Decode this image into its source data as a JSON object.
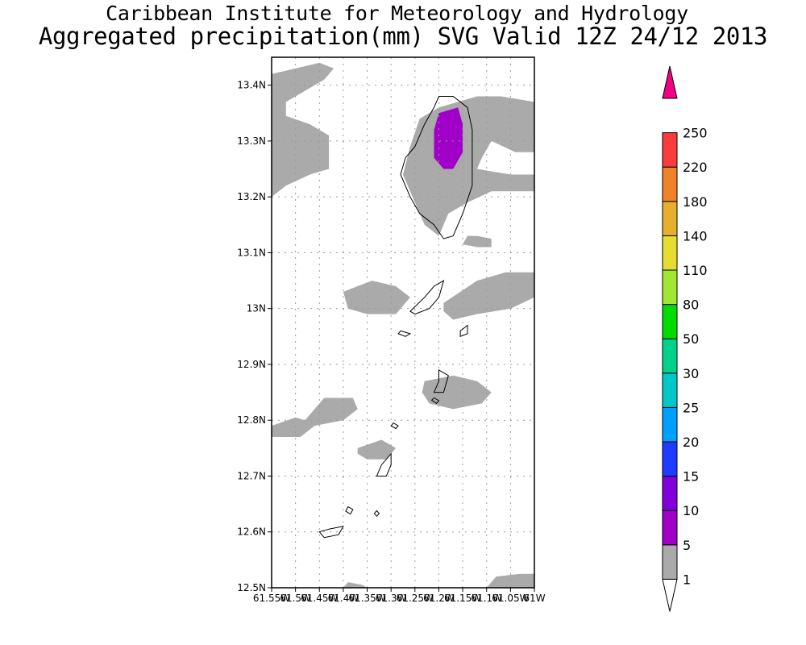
{
  "title": {
    "line1": "Caribbean Institute for Meteorology and Hydrology",
    "line2": "Aggregated precipitation(mm) SVG Valid 12Z 24/12 2013"
  },
  "map": {
    "lat_range": [
      12.5,
      13.45
    ],
    "lon_range": [
      -61.55,
      -61.0
    ],
    "lat_ticks": [
      {
        "value": 12.5,
        "label": "12.5N"
      },
      {
        "value": 12.6,
        "label": "12.6N"
      },
      {
        "value": 12.7,
        "label": "12.7N"
      },
      {
        "value": 12.8,
        "label": "12.8N"
      },
      {
        "value": 12.9,
        "label": "12.9N"
      },
      {
        "value": 13.0,
        "label": "13N"
      },
      {
        "value": 13.1,
        "label": "13.1N"
      },
      {
        "value": 13.2,
        "label": "13.2N"
      },
      {
        "value": 13.3,
        "label": "13.3N"
      },
      {
        "value": 13.4,
        "label": "13.4N"
      }
    ],
    "lon_ticks": [
      {
        "value": -61.55,
        "label": "61.55W"
      },
      {
        "value": -61.5,
        "label": "61.5W"
      },
      {
        "value": -61.45,
        "label": "61.45W"
      },
      {
        "value": -61.4,
        "label": "61.4W"
      },
      {
        "value": -61.35,
        "label": "61.35W"
      },
      {
        "value": -61.3,
        "label": "61.3W"
      },
      {
        "value": -61.25,
        "label": "61.25W"
      },
      {
        "value": -61.2,
        "label": "61.2W"
      },
      {
        "value": -61.15,
        "label": "61.15W"
      },
      {
        "value": -61.1,
        "label": "61.1W"
      },
      {
        "value": -61.05,
        "label": "61.05W"
      },
      {
        "value": -61.0,
        "label": "61W"
      }
    ],
    "grid": true,
    "precip_areas": [
      {
        "category": "1-5",
        "points": [
          [
            -61.55,
            13.42
          ],
          [
            -61.5,
            13.43
          ],
          [
            -61.45,
            13.44
          ],
          [
            -61.42,
            13.43
          ],
          [
            -61.44,
            13.41
          ],
          [
            -61.48,
            13.39
          ],
          [
            -61.52,
            13.37
          ],
          [
            -61.52,
            13.345
          ],
          [
            -61.47,
            13.33
          ],
          [
            -61.43,
            13.31
          ],
          [
            -61.43,
            13.25
          ],
          [
            -61.47,
            13.24
          ],
          [
            -61.52,
            13.22
          ],
          [
            -61.55,
            13.2
          ]
        ]
      },
      {
        "category": "1-5",
        "points": [
          [
            -61.2,
            13.36
          ],
          [
            -61.12,
            13.38
          ],
          [
            -61.07,
            13.38
          ],
          [
            -61.0,
            13.37
          ],
          [
            -61.0,
            13.28
          ],
          [
            -61.04,
            13.28
          ],
          [
            -61.09,
            13.3
          ],
          [
            -61.11,
            13.27
          ],
          [
            -61.12,
            13.25
          ],
          [
            -61.05,
            13.24
          ],
          [
            -61.0,
            13.24
          ],
          [
            -61.0,
            13.21
          ],
          [
            -61.09,
            13.21
          ],
          [
            -61.14,
            13.19
          ],
          [
            -61.18,
            13.17
          ],
          [
            -61.2,
            13.13
          ],
          [
            -61.23,
            13.15
          ],
          [
            -61.25,
            13.19
          ],
          [
            -61.275,
            13.24
          ],
          [
            -61.26,
            13.29
          ],
          [
            -61.24,
            13.34
          ]
        ]
      },
      {
        "category": "5-10",
        "points": [
          [
            -61.2,
            13.35
          ],
          [
            -61.16,
            13.36
          ],
          [
            -61.15,
            13.33
          ],
          [
            -61.15,
            13.28
          ],
          [
            -61.17,
            13.25
          ],
          [
            -61.19,
            13.25
          ],
          [
            -61.21,
            13.27
          ],
          [
            -61.21,
            13.32
          ]
        ]
      },
      {
        "category": "1-5",
        "points": [
          [
            -61.14,
            13.13
          ],
          [
            -61.12,
            13.13
          ],
          [
            -61.09,
            13.125
          ],
          [
            -61.09,
            13.11
          ],
          [
            -61.12,
            13.11
          ],
          [
            -61.15,
            13.115
          ]
        ]
      },
      {
        "category": "1-5",
        "points": [
          [
            -61.4,
            13.03
          ],
          [
            -61.34,
            13.05
          ],
          [
            -61.29,
            13.04
          ],
          [
            -61.26,
            13.02
          ],
          [
            -61.29,
            12.99
          ],
          [
            -61.35,
            12.99
          ],
          [
            -61.39,
            13.0
          ]
        ]
      },
      {
        "category": "1-5",
        "points": [
          [
            -61.19,
            13.01
          ],
          [
            -61.12,
            13.05
          ],
          [
            -61.06,
            13.065
          ],
          [
            -61.0,
            13.065
          ],
          [
            -61.0,
            13.02
          ],
          [
            -61.05,
            13.0
          ],
          [
            -61.12,
            12.99
          ],
          [
            -61.17,
            12.98
          ],
          [
            -61.19,
            12.995
          ]
        ]
      },
      {
        "category": "1-5",
        "points": [
          [
            -61.23,
            12.87
          ],
          [
            -61.17,
            12.88
          ],
          [
            -61.12,
            12.87
          ],
          [
            -61.09,
            12.85
          ],
          [
            -61.11,
            12.83
          ],
          [
            -61.17,
            12.82
          ],
          [
            -61.22,
            12.83
          ],
          [
            -61.235,
            12.85
          ]
        ]
      },
      {
        "category": "1-5",
        "points": [
          [
            -61.55,
            12.79
          ],
          [
            -61.5,
            12.805
          ],
          [
            -61.48,
            12.8
          ],
          [
            -61.44,
            12.84
          ],
          [
            -61.38,
            12.84
          ],
          [
            -61.37,
            12.82
          ],
          [
            -61.4,
            12.8
          ],
          [
            -61.46,
            12.79
          ],
          [
            -61.49,
            12.77
          ],
          [
            -61.55,
            12.77
          ]
        ]
      },
      {
        "category": "1-5",
        "points": [
          [
            -61.37,
            12.75
          ],
          [
            -61.32,
            12.765
          ],
          [
            -61.29,
            12.75
          ],
          [
            -61.31,
            12.73
          ],
          [
            -61.35,
            12.73
          ],
          [
            -61.37,
            12.74
          ]
        ]
      },
      {
        "category": "1-5",
        "points": [
          [
            -61.4,
            12.5
          ],
          [
            -61.39,
            12.51
          ],
          [
            -61.36,
            12.505
          ],
          [
            -61.35,
            12.5
          ]
        ]
      },
      {
        "category": "1-5",
        "points": [
          [
            -61.1,
            12.5
          ],
          [
            -61.08,
            12.52
          ],
          [
            -61.03,
            12.525
          ],
          [
            -61.0,
            12.525
          ],
          [
            -61.0,
            12.5
          ]
        ]
      }
    ],
    "islands": [
      {
        "name": "",
        "points": [
          [
            -61.2,
            13.38
          ],
          [
            -61.17,
            13.38
          ],
          [
            -61.14,
            13.36
          ],
          [
            -61.13,
            13.32
          ],
          [
            -61.13,
            13.27
          ],
          [
            -61.13,
            13.22
          ],
          [
            -61.15,
            13.17
          ],
          [
            -61.17,
            13.13
          ],
          [
            -61.19,
            13.125
          ],
          [
            -61.21,
            13.15
          ],
          [
            -61.24,
            13.17
          ],
          [
            -61.26,
            13.2
          ],
          [
            -61.28,
            13.24
          ],
          [
            -61.27,
            13.27
          ],
          [
            -61.25,
            13.29
          ],
          [
            -61.23,
            13.33
          ],
          [
            -61.21,
            13.36
          ]
        ]
      },
      {
        "name": "",
        "points": [
          [
            -61.19,
            13.05
          ],
          [
            -61.2,
            13.02
          ],
          [
            -61.22,
            13.0
          ],
          [
            -61.25,
            12.99
          ],
          [
            -61.26,
            12.995
          ],
          [
            -61.23,
            13.02
          ],
          [
            -61.21,
            13.04
          ]
        ]
      },
      {
        "name": "",
        "points": [
          [
            -61.28,
            12.96
          ],
          [
            -61.26,
            12.955
          ],
          [
            -61.27,
            12.95
          ],
          [
            -61.285,
            12.955
          ]
        ]
      },
      {
        "name": "",
        "points": [
          [
            -61.14,
            12.97
          ],
          [
            -61.14,
            12.955
          ],
          [
            -61.155,
            12.95
          ],
          [
            -61.155,
            12.96
          ]
        ]
      },
      {
        "name": "",
        "points": [
          [
            -61.2,
            12.89
          ],
          [
            -61.18,
            12.88
          ],
          [
            -61.19,
            12.85
          ],
          [
            -61.21,
            12.85
          ],
          [
            -61.2,
            12.87
          ]
        ]
      },
      {
        "name": "",
        "points": [
          [
            -61.3,
            12.74
          ],
          [
            -61.3,
            12.72
          ],
          [
            -61.31,
            12.7
          ],
          [
            -61.33,
            12.7
          ],
          [
            -61.32,
            12.72
          ]
        ]
      },
      {
        "name": "",
        "points": [
          [
            -61.43,
            12.605
          ],
          [
            -61.4,
            12.61
          ],
          [
            -61.41,
            12.595
          ],
          [
            -61.44,
            12.59
          ],
          [
            -61.45,
            12.6
          ]
        ]
      },
      {
        "name": "",
        "points": [
          [
            -61.39,
            12.645
          ],
          [
            -61.38,
            12.64
          ],
          [
            -61.385,
            12.632
          ],
          [
            -61.395,
            12.637
          ]
        ]
      },
      {
        "name": "",
        "points": [
          [
            -61.21,
            12.84
          ],
          [
            -61.2,
            12.835
          ],
          [
            -61.205,
            12.83
          ],
          [
            -61.215,
            12.836
          ]
        ]
      },
      {
        "name": "",
        "points": [
          [
            -61.295,
            12.795
          ],
          [
            -61.285,
            12.79
          ],
          [
            -61.29,
            12.785
          ],
          [
            -61.3,
            12.79
          ]
        ]
      },
      {
        "name": "",
        "points": [
          [
            -61.33,
            12.638
          ],
          [
            -61.325,
            12.633
          ],
          [
            -61.33,
            12.628
          ],
          [
            -61.335,
            12.633
          ]
        ]
      }
    ]
  },
  "legend": {
    "bins": [
      {
        "label": "1",
        "color": "#aaaaaa"
      },
      {
        "label": "5",
        "color": "#a000c8"
      },
      {
        "label": "10",
        "color": "#8200dc"
      },
      {
        "label": "15",
        "color": "#1e3cff"
      },
      {
        "label": "20",
        "color": "#00a0ff"
      },
      {
        "label": "25",
        "color": "#00c8c8"
      },
      {
        "label": "30",
        "color": "#00d28c"
      },
      {
        "label": "50",
        "color": "#00dc00"
      },
      {
        "label": "80",
        "color": "#a0e632"
      },
      {
        "label": "110",
        "color": "#e6dc32"
      },
      {
        "label": "140",
        "color": "#e6af2d"
      },
      {
        "label": "180",
        "color": "#f08228"
      },
      {
        "label": "220",
        "color": "#fa3c3c"
      },
      {
        "label": "250",
        "color": "#f00082"
      }
    ],
    "below_color": "#ffffff"
  },
  "colors": {
    "precip_1_5": "#aaaaaa",
    "precip_5_10": "#a000c8",
    "land": "#ffffff",
    "border": "#000000",
    "grid": "#999999"
  }
}
